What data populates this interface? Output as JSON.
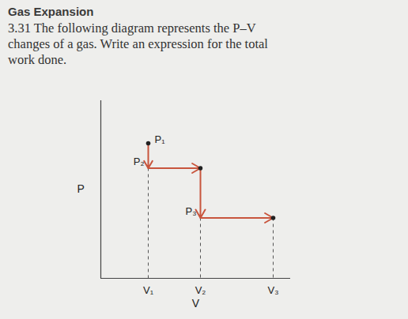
{
  "chart_data": {
    "type": "line",
    "title": "Gas Expansion",
    "subtitle": "3.31 The following diagram represents the P–V changes of a gas. Write an expression for the total work done.",
    "x_label": "V",
    "y_label": "P",
    "xlim": [
      0,
      12
    ],
    "ylim": [
      0,
      10
    ],
    "xticks": [
      {
        "value": 3,
        "label": "V₁"
      },
      {
        "value": 6.3,
        "label": "V₂"
      },
      {
        "value": 10.9,
        "label": "V₃"
      }
    ],
    "yticks": [],
    "tick_labels": "x",
    "series": [
      {
        "color": "#c8553d",
        "line_style": "solid",
        "x": [
          3,
          3,
          6.3,
          6.3,
          10.9
        ],
        "values": [
          7.6,
          6.2,
          6.2,
          3.4,
          3.4
        ]
      }
    ],
    "annotations": [
      {
        "text": "P₁",
        "x": 3,
        "y": 7.6
      },
      {
        "text": "P₂",
        "x": 3,
        "y": 6.2
      },
      {
        "text": "P₃",
        "x": 6.3,
        "y": 3.4
      }
    ],
    "points": [
      {
        "x": 3,
        "y": 7.6
      },
      {
        "x": 6.3,
        "y": 6.2
      },
      {
        "x": 10.9,
        "y": 3.4
      }
    ],
    "drop_lines": [
      {
        "x": 3,
        "y": 6.2
      },
      {
        "x": 6.3,
        "y": 3.4
      },
      {
        "x": 10.9,
        "y": 3.4
      }
    ]
  }
}
